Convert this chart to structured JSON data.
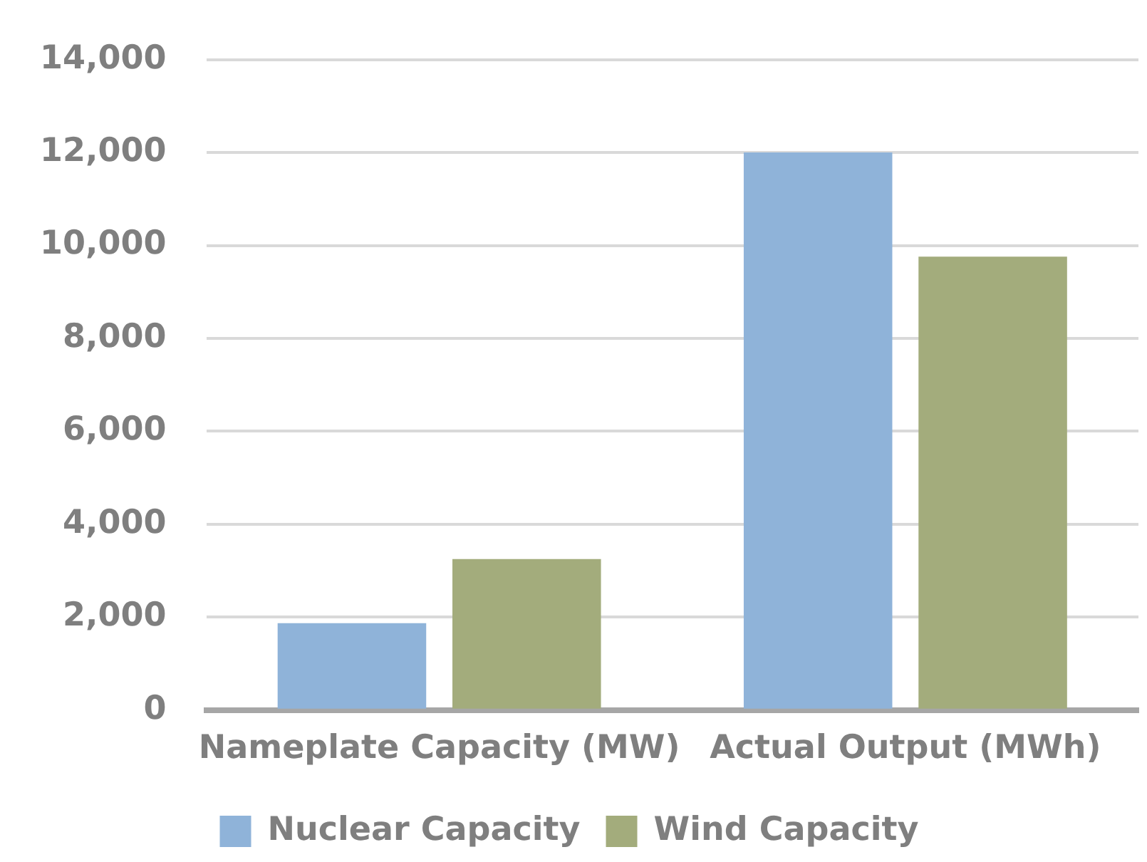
{
  "chart_data": {
    "type": "bar",
    "categories": [
      "Nameplate Capacity (MW)",
      "Actual Output (MWh)"
    ],
    "series": [
      {
        "name": "Nuclear Capacity",
        "color": "#8fb3d9",
        "values": [
          1870,
          12000
        ]
      },
      {
        "name": "Wind Capacity",
        "color": "#a3ac7c",
        "values": [
          3250,
          9760
        ]
      }
    ],
    "ylim": [
      0,
      14000
    ],
    "yticks": [
      {
        "value": 0,
        "label": "0"
      },
      {
        "value": 2000,
        "label": "2,000"
      },
      {
        "value": 4000,
        "label": "4,000"
      },
      {
        "value": 6000,
        "label": "6,000"
      },
      {
        "value": 8000,
        "label": "8,000"
      },
      {
        "value": 10000,
        "label": "10,000"
      },
      {
        "value": 12000,
        "label": "12,000"
      },
      {
        "value": 14000,
        "label": "14,000"
      }
    ],
    "grid": "y",
    "legend": "bottom"
  }
}
